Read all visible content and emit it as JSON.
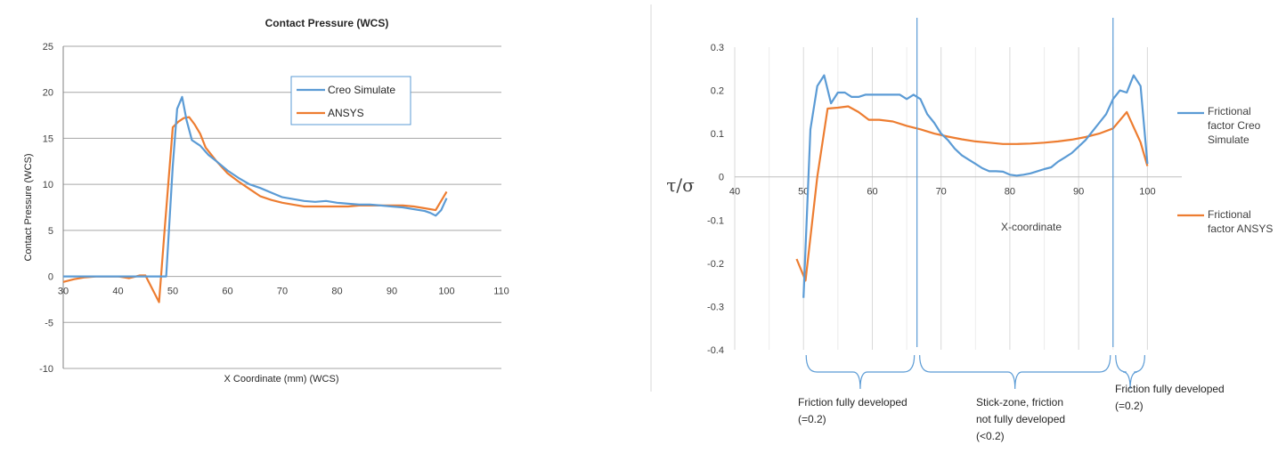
{
  "chart_data": [
    {
      "type": "line",
      "title": "Contact Pressure (WCS)",
      "xlabel": "X Coordinate (mm) (WCS)",
      "ylabel": "Contact Pressure (WCS)",
      "xlim": [
        30,
        110
      ],
      "ylim": [
        -10,
        25
      ],
      "x_ticks": [
        "30",
        "40",
        "50",
        "60",
        "70",
        "80",
        "90",
        "100",
        "110"
      ],
      "y_ticks": [
        "25",
        "20",
        "15",
        "10",
        "5",
        "0",
        "-5",
        "-10"
      ],
      "grid": "horizontal",
      "legend": "top-right inside",
      "series": [
        {
          "name": "Creo Simulate",
          "color": "#5B9BD5",
          "x": [
            30,
            40,
            45,
            48,
            48.8,
            50,
            50.8,
            51.7,
            52.5,
            53.5,
            55,
            56.5,
            58,
            60,
            62,
            64,
            66,
            68,
            70,
            72,
            74,
            76,
            78,
            80,
            82,
            84,
            86,
            88,
            90,
            92,
            94,
            96,
            97,
            98,
            99,
            100
          ],
          "y": [
            0,
            0,
            0,
            0,
            0,
            12,
            18.2,
            19.5,
            17,
            14.8,
            14.2,
            13.2,
            12.5,
            11.5,
            10.7,
            10,
            9.6,
            9.1,
            8.6,
            8.4,
            8.2,
            8.1,
            8.2,
            8.0,
            7.9,
            7.8,
            7.8,
            7.7,
            7.6,
            7.5,
            7.3,
            7.1,
            6.9,
            6.6,
            7.2,
            8.5
          ]
        },
        {
          "name": "ANSYS",
          "color": "#ED7D31",
          "x": [
            30,
            32,
            34,
            36,
            38,
            40,
            42,
            44,
            45,
            47.5,
            48.5,
            50,
            51,
            52,
            53,
            54,
            55,
            56,
            58,
            60,
            62,
            64,
            66,
            68,
            70,
            72,
            74,
            76,
            78,
            80,
            82,
            84,
            86,
            88,
            90,
            92,
            94,
            96,
            98,
            100
          ],
          "y": [
            -0.6,
            -0.3,
            -0.1,
            0,
            0,
            0,
            -0.2,
            0.1,
            0.1,
            -2.8,
            5,
            16.2,
            16.8,
            17.2,
            17.3,
            16.5,
            15.5,
            14,
            12.5,
            11.2,
            10.3,
            9.5,
            8.7,
            8.3,
            8.0,
            7.8,
            7.6,
            7.6,
            7.6,
            7.6,
            7.6,
            7.7,
            7.7,
            7.7,
            7.7,
            7.7,
            7.6,
            7.4,
            7.2,
            9.2
          ]
        }
      ]
    },
    {
      "type": "line",
      "title": "",
      "xlabel": "X-coordinate",
      "ylabel": "τ/σ",
      "xlim": [
        40,
        105
      ],
      "ylim": [
        -0.4,
        0.3
      ],
      "x_ticks": [
        "40",
        "50",
        "60",
        "70",
        "80",
        "90",
        "100"
      ],
      "y_ticks": [
        "0.3",
        "0.2",
        "0.1",
        "0",
        "-0.1",
        "-0.2",
        "-0.3",
        "-0.4"
      ],
      "grid": "vertical",
      "legend": "right",
      "series": [
        {
          "name": "Frictional factor Creo Simulate",
          "color": "#5B9BD5",
          "x": [
            50,
            51,
            52,
            53,
            54,
            55,
            56,
            57,
            58,
            59,
            60,
            61,
            62,
            63,
            64,
            65,
            66,
            67,
            68,
            69,
            70,
            71,
            72,
            73,
            74,
            75,
            76,
            77,
            78,
            79,
            80,
            81,
            82,
            83,
            84,
            85,
            86,
            87,
            88,
            89,
            90,
            91,
            92,
            93,
            94,
            95,
            96,
            97,
            98,
            99,
            100
          ],
          "y": [
            -0.28,
            0.11,
            0.21,
            0.235,
            0.17,
            0.195,
            0.195,
            0.185,
            0.185,
            0.19,
            0.19,
            0.19,
            0.19,
            0.19,
            0.19,
            0.18,
            0.19,
            0.18,
            0.145,
            0.125,
            0.1,
            0.085,
            0.065,
            0.05,
            0.04,
            0.03,
            0.02,
            0.013,
            0.013,
            0.012,
            0.005,
            0.003,
            0.005,
            0.008,
            0.013,
            0.018,
            0.022,
            0.035,
            0.045,
            0.055,
            0.07,
            0.085,
            0.105,
            0.125,
            0.145,
            0.18,
            0.2,
            0.195,
            0.235,
            0.21,
            0.03
          ]
        },
        {
          "name": "Frictional factor ANSYS",
          "color": "#ED7D31",
          "x": [
            49,
            50.3,
            52,
            53.5,
            55,
            56.5,
            58,
            59.5,
            61,
            63,
            65,
            67,
            69,
            71,
            73,
            75,
            77,
            79,
            81,
            83,
            85,
            87,
            89,
            91,
            93,
            95,
            97,
            99,
            100
          ],
          "y": [
            -0.19,
            -0.24,
            0.0,
            0.158,
            0.16,
            0.163,
            0.15,
            0.132,
            0.132,
            0.128,
            0.118,
            0.11,
            0.1,
            0.093,
            0.087,
            0.082,
            0.079,
            0.076,
            0.076,
            0.077,
            0.079,
            0.082,
            0.086,
            0.092,
            0.1,
            0.112,
            0.15,
            0.08,
            0.025
          ]
        }
      ],
      "annotations": {
        "separators_x": [
          66.5,
          95
        ],
        "zones": [
          {
            "lines": [
              "Friction fully developed",
              "(=0.2)"
            ]
          },
          {
            "lines": [
              "Stick-zone, friction",
              "not fully developed",
              "(<0.2)"
            ]
          },
          {
            "lines": [
              "Friction fully developed",
              "(=0.2)"
            ]
          }
        ]
      }
    }
  ]
}
